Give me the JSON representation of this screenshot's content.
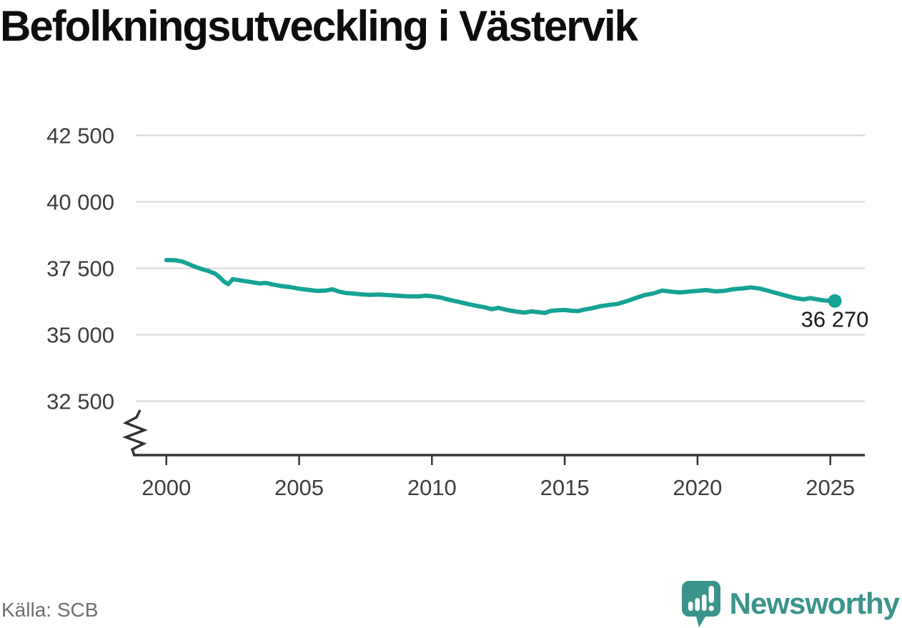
{
  "header": {
    "title": "Befolkningsutveckling i Västervik"
  },
  "footer": {
    "source": "Källa: SCB",
    "brand": "Newsworthy"
  },
  "colors": {
    "line": "#16a295",
    "grid": "#d8d8d8",
    "axis": "#333333",
    "tick_label": "#3d3d3d",
    "annotation": "#1a1a1a",
    "brand_teal": "#3b948b",
    "title": "#0d0d0d",
    "source_gray": "#6e6e6e"
  },
  "chart_data": {
    "type": "line",
    "title": "Befolkningsutveckling i Västervik",
    "xlabel": "",
    "ylabel": "",
    "source": "Källa: SCB",
    "grid": "horizontal",
    "axis_break": true,
    "xlim": [
      1998.85,
      2026.3
    ],
    "ylim": [
      32500,
      42500
    ],
    "yticks": [
      [
        42500,
        "42 500"
      ],
      [
        40000,
        "40 000"
      ],
      [
        37500,
        "37 500"
      ],
      [
        35000,
        "35 000"
      ],
      [
        32500,
        "32 500"
      ]
    ],
    "xticks": [
      [
        2000,
        "2000"
      ],
      [
        2005,
        "2005"
      ],
      [
        2010,
        "2010"
      ],
      [
        2015,
        "2015"
      ],
      [
        2020,
        "2020"
      ],
      [
        2025,
        "2025"
      ]
    ],
    "end_label": "36 270",
    "end_value": 36270,
    "series": [
      {
        "name": "Befolkning",
        "color": "#16a295",
        "points": [
          [
            2000.0,
            37810
          ],
          [
            2000.33,
            37800
          ],
          [
            2000.58,
            37760
          ],
          [
            2000.83,
            37660
          ],
          [
            2001.08,
            37560
          ],
          [
            2001.33,
            37470
          ],
          [
            2001.58,
            37400
          ],
          [
            2001.83,
            37300
          ],
          [
            2002.0,
            37170
          ],
          [
            2002.17,
            37000
          ],
          [
            2002.33,
            36900
          ],
          [
            2002.5,
            37090
          ],
          [
            2002.75,
            37050
          ],
          [
            2003.0,
            37010
          ],
          [
            2003.25,
            36970
          ],
          [
            2003.5,
            36930
          ],
          [
            2003.75,
            36950
          ],
          [
            2004.0,
            36890
          ],
          [
            2004.33,
            36830
          ],
          [
            2004.67,
            36790
          ],
          [
            2005.0,
            36730
          ],
          [
            2005.33,
            36690
          ],
          [
            2005.67,
            36650
          ],
          [
            2006.0,
            36660
          ],
          [
            2006.25,
            36710
          ],
          [
            2006.5,
            36620
          ],
          [
            2006.75,
            36570
          ],
          [
            2007.0,
            36550
          ],
          [
            2007.33,
            36520
          ],
          [
            2007.67,
            36500
          ],
          [
            2008.0,
            36510
          ],
          [
            2008.5,
            36480
          ],
          [
            2009.0,
            36450
          ],
          [
            2009.5,
            36440
          ],
          [
            2009.75,
            36470
          ],
          [
            2010.0,
            36450
          ],
          [
            2010.33,
            36400
          ],
          [
            2010.67,
            36310
          ],
          [
            2011.0,
            36240
          ],
          [
            2011.33,
            36160
          ],
          [
            2011.67,
            36090
          ],
          [
            2012.0,
            36030
          ],
          [
            2012.25,
            35960
          ],
          [
            2012.5,
            36010
          ],
          [
            2012.75,
            35950
          ],
          [
            2013.0,
            35900
          ],
          [
            2013.25,
            35860
          ],
          [
            2013.5,
            35830
          ],
          [
            2013.75,
            35880
          ],
          [
            2014.0,
            35850
          ],
          [
            2014.25,
            35820
          ],
          [
            2014.5,
            35900
          ],
          [
            2014.75,
            35920
          ],
          [
            2015.0,
            35930
          ],
          [
            2015.25,
            35900
          ],
          [
            2015.5,
            35890
          ],
          [
            2015.75,
            35950
          ],
          [
            2016.0,
            35990
          ],
          [
            2016.33,
            36070
          ],
          [
            2016.67,
            36120
          ],
          [
            2017.0,
            36160
          ],
          [
            2017.33,
            36260
          ],
          [
            2017.67,
            36380
          ],
          [
            2018.0,
            36490
          ],
          [
            2018.33,
            36550
          ],
          [
            2018.67,
            36660
          ],
          [
            2019.0,
            36620
          ],
          [
            2019.33,
            36590
          ],
          [
            2019.67,
            36620
          ],
          [
            2020.0,
            36650
          ],
          [
            2020.33,
            36680
          ],
          [
            2020.67,
            36630
          ],
          [
            2021.0,
            36650
          ],
          [
            2021.33,
            36710
          ],
          [
            2021.67,
            36740
          ],
          [
            2022.0,
            36780
          ],
          [
            2022.33,
            36740
          ],
          [
            2022.67,
            36650
          ],
          [
            2023.0,
            36560
          ],
          [
            2023.33,
            36470
          ],
          [
            2023.67,
            36380
          ],
          [
            2024.0,
            36330
          ],
          [
            2024.25,
            36380
          ],
          [
            2024.5,
            36330
          ],
          [
            2024.75,
            36290
          ],
          [
            2025.0,
            36280
          ],
          [
            2025.17,
            36270
          ]
        ]
      }
    ]
  }
}
